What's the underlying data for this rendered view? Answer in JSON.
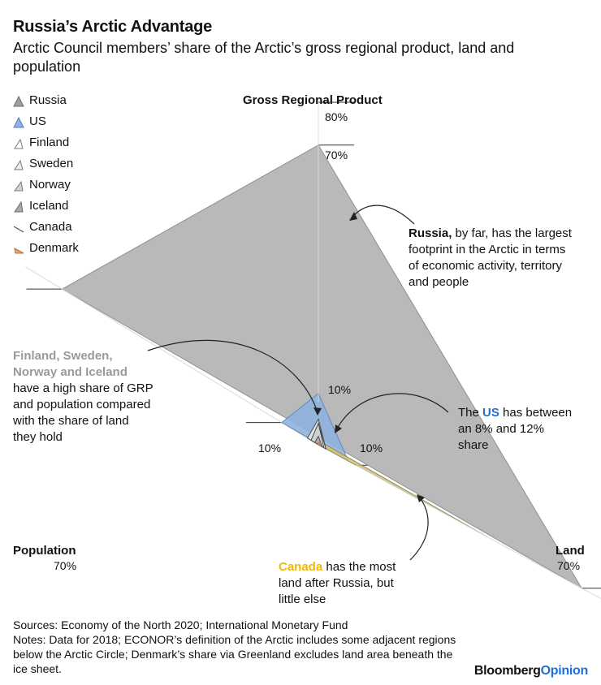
{
  "header": {
    "title": "Russia’s Arctic Advantage",
    "subtitle": "Arctic Council members’ share of the Arctic’s gross regional product, land and population"
  },
  "chart_data": {
    "type": "radar",
    "axes": [
      "Gross Regional Product",
      "Land",
      "Population"
    ],
    "axis_max": 80,
    "ticks": {
      "grp": [
        "10%",
        "70%",
        "80%"
      ],
      "land": [
        "10%",
        "70%"
      ],
      "population": [
        "10%",
        "70%"
      ]
    },
    "series": [
      {
        "name": "Russia",
        "values": {
          "grp": 70,
          "land": 70,
          "population": 70
        },
        "color": "#b9b9b9",
        "stroke": "#8f8f8f"
      },
      {
        "name": "US",
        "values": {
          "grp": 12,
          "land": 8,
          "population": 10
        },
        "color": "#8fb3de",
        "stroke": "#5a86bf"
      },
      {
        "name": "Canada",
        "values": {
          "grp": 1,
          "land": 45,
          "population": 0.6
        },
        "color": "#d7c27a",
        "stroke": "#8a8a60"
      },
      {
        "name": "Finland",
        "values": {
          "grp": 6,
          "land": 2,
          "population": 3
        },
        "color": "#e8e8e8",
        "stroke": "#444444"
      },
      {
        "name": "Sweden",
        "values": {
          "grp": 5,
          "land": 2,
          "population": 2
        },
        "color": "#e2e2e2",
        "stroke": "#444444"
      },
      {
        "name": "Norway",
        "values": {
          "grp": 5,
          "land": 1.5,
          "population": 2
        },
        "color": "#cfcfcf",
        "stroke": "#444444"
      },
      {
        "name": "Iceland",
        "values": {
          "grp": 2,
          "land": 1,
          "population": 1
        },
        "color": "#a8a8a8",
        "stroke": "#444444"
      },
      {
        "name": "Denmark",
        "values": {
          "grp": 0.5,
          "land": 0.5,
          "population": 0.2
        },
        "color": "#e8a77a",
        "stroke": "#b06a3a"
      }
    ]
  },
  "legend": {
    "items": [
      {
        "label": "Russia",
        "fill": "#9e9e9e",
        "stroke": "#6f6f6f"
      },
      {
        "label": "US",
        "fill": "#8fb3de",
        "stroke": "#4f7fbf"
      },
      {
        "label": "Finland",
        "fill": "#ffffff",
        "stroke": "#7a7a7a"
      },
      {
        "label": "Sweden",
        "fill": "#ececec",
        "stroke": "#7a7a7a"
      },
      {
        "label": "Norway",
        "fill": "#d2d2d2",
        "stroke": "#7a7a7a"
      },
      {
        "label": "Iceland",
        "fill": "#a9a9a9",
        "stroke": "#6a6a6a"
      },
      {
        "label": "Canada",
        "fill": "#555555",
        "stroke": "#555555"
      },
      {
        "label": "Denmark",
        "fill": "#e9a676",
        "stroke": "#b5713f"
      }
    ]
  },
  "axes_labels": {
    "grp": "Gross Regional Product",
    "population": "Population",
    "land": "Land"
  },
  "annotations": {
    "russia_bold": "Russia,",
    "russia_rest_1": " by far, has the largest",
    "russia_rest_2": "footprint in the Arctic in terms",
    "russia_rest_3": "of economic activity, territory",
    "russia_rest_4": "and people",
    "nordic_bold_1": "Finland, Sweden,",
    "nordic_bold_2": "Norway and Iceland",
    "nordic_rest_1": "have a high share of GRP",
    "nordic_rest_2": "and population compared",
    "nordic_rest_3": "with the share of land",
    "nordic_rest_4": "they hold",
    "us_pre": "The ",
    "us_bold": "US",
    "us_post": " has between",
    "us_rest_1": "an 8% and 12%",
    "us_rest_2": "share",
    "canada_bold": "Canada",
    "canada_rest_1": " has the most",
    "canada_rest_2": "land after Russia, but",
    "canada_rest_3": "little else"
  },
  "colors": {
    "us_highlight": "#1f6fd6",
    "canada_highlight": "#f2b705",
    "nordic_highlight": "#9a9a9a"
  },
  "footer": {
    "sources": "Sources: Economy of the North 2020; International Monetary Fund",
    "notes": "Notes: Data for 2018; ECONOR’s definition of the Arctic includes some adjacent regions below the Arctic Circle; Denmark’s share via Greenland excludes land area beneath the ice sheet.",
    "brand_main": "Bloomberg",
    "brand_accent": "Opinion"
  }
}
